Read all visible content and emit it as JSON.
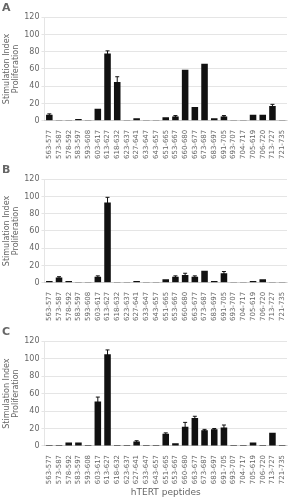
{
  "chart_data": [
    {
      "type": "bar",
      "title": "A",
      "categories": [
        "563-577",
        "573-587",
        "578-592",
        "583-597",
        "593-608",
        "603-617",
        "613-627",
        "618-632",
        "623-637",
        "627-641",
        "633-647",
        "643-657",
        "651-665",
        "653-667",
        "660-680",
        "663-677",
        "673-687",
        "683-697",
        "691-705",
        "693-707",
        "704-717",
        "705-619",
        "706-720",
        "713-727",
        "721-735"
      ],
      "values": [
        7,
        1,
        1,
        2,
        1,
        14,
        78,
        45,
        1,
        3,
        1,
        1,
        4,
        5,
        59,
        16,
        66,
        3,
        5,
        1,
        1,
        7,
        7,
        17,
        1
      ],
      "errors": [
        1,
        0,
        0,
        0,
        0,
        0,
        3,
        6,
        0,
        0,
        0,
        0,
        0,
        1,
        0,
        0,
        0,
        0,
        1,
        0,
        0,
        0,
        0,
        2,
        0
      ],
      "color": "#111111",
      "ylabel": "Stimulation Index\nProliferation",
      "ylim": [
        0,
        120
      ],
      "yticks": [
        0,
        20,
        40,
        60,
        80,
        100,
        120
      ],
      "grid": true
    },
    {
      "type": "bar",
      "title": "B",
      "categories": [
        "563-577",
        "573-587",
        "578-592",
        "583-597",
        "593-608",
        "603-617",
        "613-627",
        "618-632",
        "623-637",
        "627-641",
        "633-647",
        "643-657",
        "651-665",
        "653-667",
        "660-680",
        "663-677",
        "673-687",
        "683-697",
        "691-705",
        "693-707",
        "704-717",
        "705-619",
        "706-720",
        "713-727",
        "721-735"
      ],
      "values": [
        2,
        6,
        2,
        1,
        1,
        7,
        93,
        1,
        1,
        2,
        1,
        1,
        4,
        7,
        9,
        7,
        14,
        2,
        11,
        1,
        1,
        2,
        4,
        1,
        1
      ],
      "errors": [
        0,
        1,
        0,
        0,
        0,
        1,
        6,
        0,
        0,
        0,
        0,
        0,
        0,
        1,
        2,
        1,
        0,
        0,
        2,
        0,
        0,
        0,
        0,
        0,
        0
      ],
      "color": "#111111",
      "ylabel": "Stimulation Index\nProliferation",
      "ylim": [
        0,
        120
      ],
      "yticks": [
        0,
        20,
        40,
        60,
        80,
        100,
        120
      ],
      "grid": true
    },
    {
      "type": "bar",
      "title": "C",
      "categories": [
        "563-577",
        "573-587",
        "578-592",
        "583-597",
        "593-608",
        "603-617",
        "613-627",
        "618-632",
        "623-637",
        "627-641",
        "633-647",
        "643-657",
        "651-665",
        "653-667",
        "660-680",
        "663-677",
        "673-687",
        "683-697",
        "691-705",
        "693-707",
        "704-717",
        "705-619",
        "706-720",
        "713-727",
        "721-735"
      ],
      "values": [
        1,
        1,
        4,
        4,
        1,
        51,
        105,
        1,
        1,
        5,
        1,
        1,
        14,
        3,
        22,
        32,
        18,
        19,
        21,
        1,
        1,
        4,
        1,
        15,
        1
      ],
      "errors": [
        0,
        0,
        0,
        0,
        0,
        5,
        5,
        0,
        0,
        1,
        0,
        0,
        1,
        0,
        5,
        2,
        1,
        1,
        3,
        0,
        0,
        0,
        0,
        0,
        0
      ],
      "color": "#111111",
      "ylabel": "Stimulation Index\nProliferation",
      "xlabel": "hTERT peptides",
      "ylim": [
        0,
        120
      ],
      "yticks": [
        0,
        20,
        40,
        60,
        80,
        100,
        120
      ],
      "grid": true
    }
  ]
}
